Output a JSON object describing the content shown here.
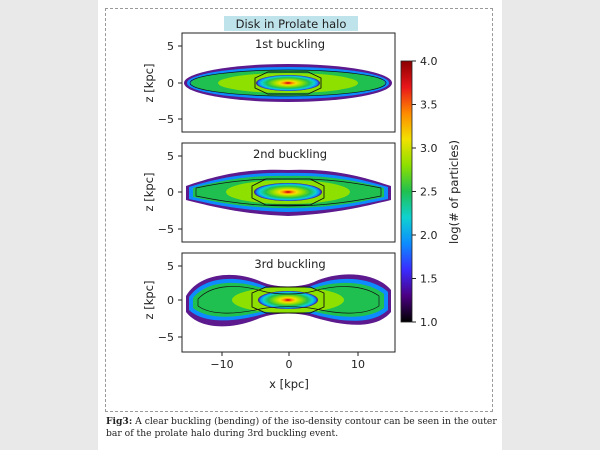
{
  "figure": {
    "title": "Disk in Prolate halo",
    "panels": [
      {
        "label": "1st buckling",
        "ylabel": "z [kpc]",
        "yticks": [
          "5",
          "0",
          "−5"
        ]
      },
      {
        "label": "2nd buckling",
        "ylabel": "z [kpc]",
        "yticks": [
          "5",
          "0",
          "−5"
        ]
      },
      {
        "label": "3rd buckling",
        "ylabel": "z [kpc]",
        "yticks": [
          "5",
          "0",
          "−5"
        ]
      }
    ],
    "xlabel": "x [kpc]",
    "xticks": [
      "−10",
      "0",
      "10"
    ],
    "colorbar": {
      "label": "log(# of particles)",
      "ticks": [
        "4.0",
        "3.5",
        "3.0",
        "2.5",
        "2.0",
        "1.5",
        "1.0"
      ],
      "colors": [
        "#000000",
        "#4b0082",
        "#3a2bff",
        "#0c8cff",
        "#0fd1d1",
        "#20c050",
        "#8de000",
        "#f1e100",
        "#ff8a00",
        "#e8161b",
        "#8b0000"
      ]
    }
  },
  "caption": {
    "label": "Fig3:",
    "text": " A clear buckling (bending) of the iso-density contour can be seen in the outer bar of the prolate halo during 3rd buckling event."
  }
}
